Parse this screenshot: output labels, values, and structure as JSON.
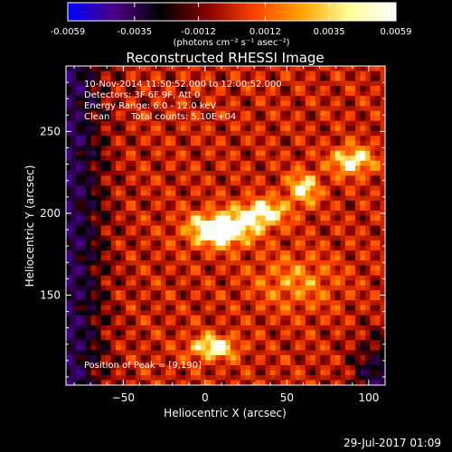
{
  "colorbar": {
    "tick_labels": [
      "-0.0059",
      "-0.0035",
      "-0.0012",
      "0.0012",
      "0.0035",
      "0.0059"
    ],
    "tick_values": [
      -0.0059,
      -0.0035,
      -0.0012,
      0.0012,
      0.0035,
      0.0059
    ],
    "range": [
      -0.0059,
      0.0059
    ],
    "unit_label": "(photons cm⁻² s⁻¹ asec⁻²)",
    "colormap_stops": [
      "#0000ff",
      "#4b0082",
      "#000000",
      "#8b0000",
      "#ff4500",
      "#ffa500",
      "#ffff99",
      "#ffffff"
    ]
  },
  "title": "Reconstructed RHESSI Image",
  "overlay": {
    "line1": "10-Nov-2014 11:50:52.000 to 12:00:52.000",
    "line2": "Detectors: 3F 6F 9F, Att 0",
    "line3": "Energy Range: 6.0 - 12.0 keV",
    "line4a": "Clean",
    "line4b": "Total counts: 5.10E+04",
    "peak": "Position of Peak = [9,190]"
  },
  "footer_date": "29-Jul-2017 01:09",
  "chart_data": {
    "type": "heatmap",
    "title": "Reconstructed RHESSI Image",
    "xlabel": "Heliocentric X (arcsec)",
    "ylabel": "Heliocentric Y (arcsec)",
    "xlim": [
      -85,
      110
    ],
    "ylim": [
      95,
      290
    ],
    "xticks": [
      -50,
      0,
      50,
      100
    ],
    "xtick_labels": [
      "−50",
      "0",
      "50",
      "100"
    ],
    "yticks": [
      150,
      200,
      250
    ],
    "ytick_labels": [
      "150",
      "200",
      "250"
    ],
    "value_range": [
      -0.0059,
      0.0059
    ],
    "peak_position": [
      9,
      190
    ],
    "sources": [
      {
        "x": 9,
        "y": 190,
        "sx": 13,
        "sy": 7,
        "amp": 0.0059
      },
      {
        "x": 35,
        "y": 200,
        "sx": 10,
        "sy": 6,
        "amp": 0.0042
      },
      {
        "x": 60,
        "y": 215,
        "sx": 7,
        "sy": 7,
        "amp": 0.0035
      },
      {
        "x": 90,
        "y": 232,
        "sx": 9,
        "sy": 6,
        "amp": 0.004
      },
      {
        "x": 5,
        "y": 118,
        "sx": 10,
        "sy": 5,
        "amp": 0.0042
      },
      {
        "x": 55,
        "y": 158,
        "sx": 18,
        "sy": 12,
        "amp": 0.0018
      }
    ]
  }
}
